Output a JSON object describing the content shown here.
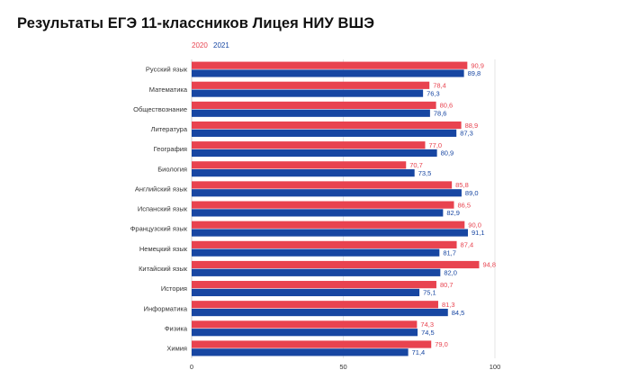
{
  "chart_data": {
    "type": "bar",
    "orientation": "horizontal",
    "title": "Результаты ЕГЭ 11-классников Лицея НИУ ВШЭ",
    "legend_position": "top-left",
    "xlim": [
      0,
      100
    ],
    "xticks": [
      0,
      50,
      100
    ],
    "grid": true,
    "categories": [
      "Русский язык",
      "Математика",
      "Обществознание",
      "Литература",
      "География",
      "Биология",
      "Английский язык",
      "Испанский язык",
      "Французский язык",
      "Немецкий язык",
      "Китайский язык",
      "История",
      "Информатика",
      "Физика",
      "Химия"
    ],
    "series": [
      {
        "name": "2020",
        "color": "#e8434f",
        "values": [
          90.9,
          78.4,
          80.6,
          88.9,
          77.0,
          70.7,
          85.8,
          86.5,
          90.0,
          87.4,
          94.8,
          80.7,
          81.3,
          74.3,
          79.0
        ],
        "labels": [
          "90,9",
          "78,4",
          "80,6",
          "88,9",
          "77,0",
          "70,7",
          "85,8",
          "86,5",
          "90,0",
          "87,4",
          "94,8",
          "80,7",
          "81,3",
          "74,3",
          "79,0"
        ]
      },
      {
        "name": "2021",
        "color": "#1746a2",
        "values": [
          89.8,
          76.3,
          78.6,
          87.3,
          80.9,
          73.5,
          89.0,
          82.9,
          91.1,
          81.7,
          82.0,
          75.1,
          84.5,
          74.5,
          71.4
        ],
        "labels": [
          "89,8",
          "76,3",
          "78,6",
          "87,3",
          "80,9",
          "73,5",
          "89,0",
          "82,9",
          "91,1",
          "81,7",
          "82,0",
          "75,1",
          "84,5",
          "74,5",
          "71,4"
        ]
      }
    ]
  }
}
